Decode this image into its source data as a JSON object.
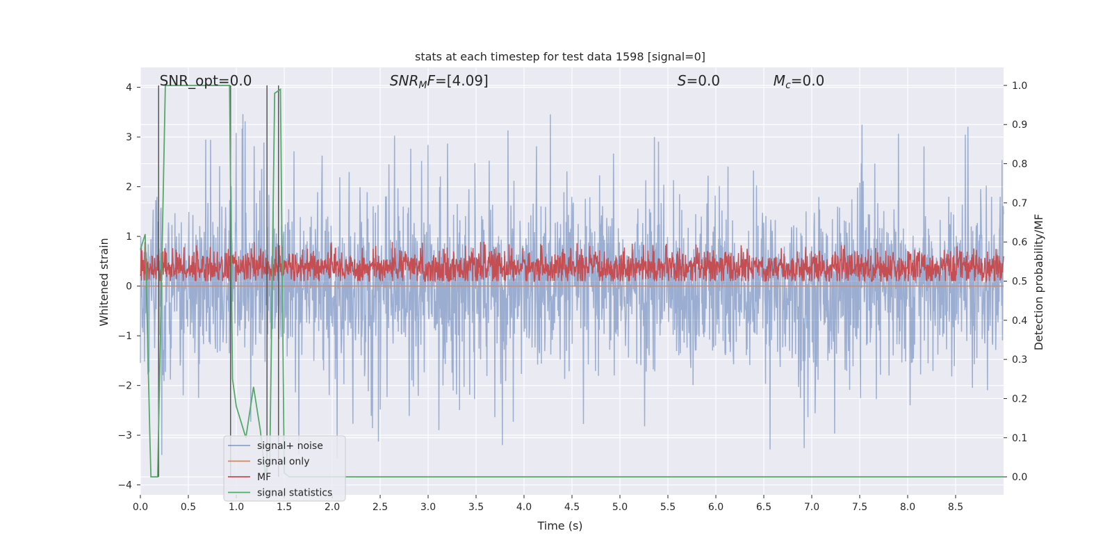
{
  "chart_data": {
    "type": "line",
    "title": "stats at each timestep for test data 1598 [signal=0]",
    "xlabel": "Time (s)",
    "ylabel": "Whitened strain",
    "y2label": "Detection probability/MF",
    "xlim": [
      0.0,
      9.0
    ],
    "ylim": [
      -4.2,
      4.4
    ],
    "y2lim": [
      -0.046,
      1.046
    ],
    "xticks": [
      0.0,
      0.5,
      1.0,
      1.5,
      2.0,
      2.5,
      3.0,
      3.5,
      4.0,
      4.5,
      5.0,
      5.5,
      6.0,
      6.5,
      7.0,
      7.5,
      8.0,
      8.5
    ],
    "xtick_labels": [
      "0.0",
      "0.5",
      "1.0",
      "1.5",
      "2.0",
      "2.5",
      "3.0",
      "3.5",
      "4.0",
      "4.5",
      "5.0",
      "5.5",
      "6.0",
      "6.5",
      "7.0",
      "7.5",
      "8.0",
      "8.5"
    ],
    "yticks": [
      -4,
      -3,
      -2,
      -1,
      0,
      1,
      2,
      3,
      4
    ],
    "ytick_labels": [
      "−4",
      "−3",
      "−2",
      "−1",
      "0",
      "1",
      "2",
      "3",
      "4"
    ],
    "y2ticks": [
      0.0,
      0.1,
      0.2,
      0.3,
      0.4,
      0.5,
      0.6,
      0.7,
      0.8,
      0.9,
      1.0
    ],
    "y2tick_labels": [
      "0.0",
      "0.1",
      "0.2",
      "0.3",
      "0.4",
      "0.5",
      "0.6",
      "0.7",
      "0.8",
      "0.9",
      "1.0"
    ],
    "grid": true,
    "legend_position": "lower-left",
    "annotations": [
      {
        "text": "SNR_opt=0.0",
        "x": 0.2
      },
      {
        "text": "SNR_MF=[4.09]",
        "x": 2.6
      },
      {
        "text": "S=0.0",
        "x": 5.6
      },
      {
        "text": "M_c=0.0",
        "x": 6.6
      }
    ],
    "series": [
      {
        "name": "signal+ noise",
        "color": "#4c72b0",
        "axis": "left",
        "kind": "noise",
        "center": 0.0,
        "spread": 0.85,
        "peak_max": 4.0,
        "peak_min": -3.65
      },
      {
        "name": "signal only",
        "color": "#dd8452",
        "axis": "left",
        "x": [
          0.0,
          9.0
        ],
        "y": [
          0.0,
          0.0
        ]
      },
      {
        "name": "MF",
        "color": "#c44e52",
        "axis": "right",
        "kind": "mf",
        "center": 0.535,
        "spread": 0.022,
        "peak_max": 0.6,
        "peak_min": 0.5
      },
      {
        "name": "signal statistics",
        "color": "#55a868",
        "axis": "right",
        "x": [
          0.0,
          0.05,
          0.1,
          0.11,
          0.18,
          0.26,
          0.3,
          0.93,
          0.96,
          1.0,
          1.1,
          1.18,
          1.25,
          1.3,
          1.35,
          1.4,
          1.46,
          1.5,
          1.55,
          9.0
        ],
        "y": [
          0.58,
          0.62,
          0.09,
          0.0,
          0.0,
          1.0,
          1.0,
          1.0,
          0.25,
          0.18,
          0.1,
          0.23,
          0.12,
          0.01,
          0.05,
          0.98,
          0.99,
          0.01,
          0.0,
          0.0
        ]
      }
    ],
    "vlines": [
      0.19,
      0.94,
      1.32,
      1.44
    ]
  },
  "colors": {
    "axes_bg": "#eaeaf2",
    "grid": "#ffffff",
    "vline": "#555555",
    "text": "#262626"
  }
}
